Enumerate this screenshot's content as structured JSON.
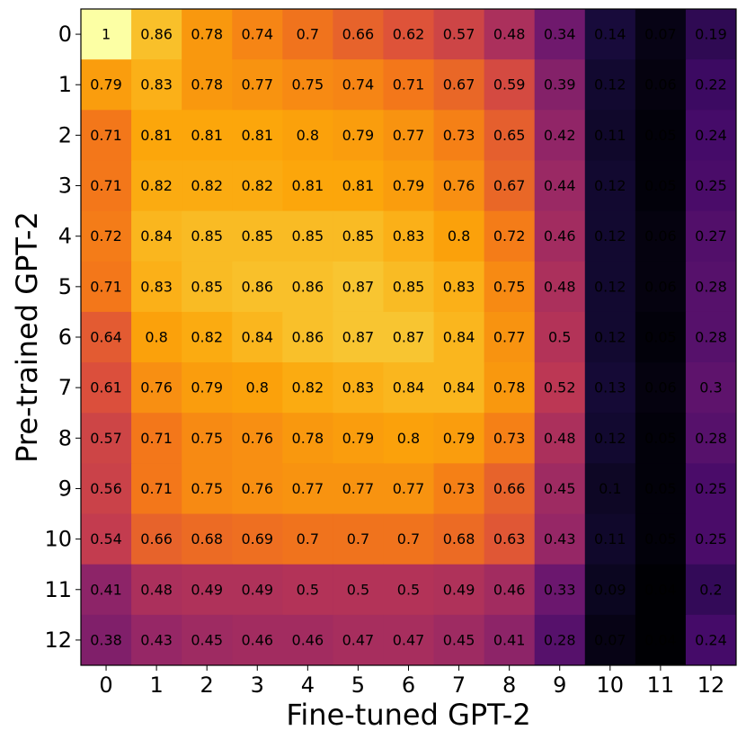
{
  "chart_data": {
    "type": "heatmap",
    "title": "",
    "xlabel": "Fine-tuned GPT-2",
    "ylabel": "Pre-trained GPT-2",
    "x_categories": [
      "0",
      "1",
      "2",
      "3",
      "4",
      "5",
      "6",
      "7",
      "8",
      "9",
      "10",
      "11",
      "12"
    ],
    "y_categories": [
      "0",
      "1",
      "2",
      "3",
      "4",
      "5",
      "6",
      "7",
      "8",
      "9",
      "10",
      "11",
      "12"
    ],
    "colormap": "inferno",
    "vmin": 0.04,
    "vmax": 1.0,
    "values": [
      [
        1.0,
        0.86,
        0.78,
        0.74,
        0.7,
        0.66,
        0.62,
        0.57,
        0.48,
        0.34,
        0.14,
        0.07,
        0.19
      ],
      [
        0.79,
        0.83,
        0.78,
        0.77,
        0.75,
        0.74,
        0.71,
        0.67,
        0.59,
        0.39,
        0.12,
        0.06,
        0.22
      ],
      [
        0.71,
        0.81,
        0.81,
        0.81,
        0.8,
        0.79,
        0.77,
        0.73,
        0.65,
        0.42,
        0.11,
        0.05,
        0.24
      ],
      [
        0.71,
        0.82,
        0.82,
        0.82,
        0.81,
        0.81,
        0.79,
        0.76,
        0.67,
        0.44,
        0.12,
        0.05,
        0.25
      ],
      [
        0.72,
        0.84,
        0.85,
        0.85,
        0.85,
        0.85,
        0.83,
        0.8,
        0.72,
        0.46,
        0.12,
        0.06,
        0.27
      ],
      [
        0.71,
        0.83,
        0.85,
        0.86,
        0.86,
        0.87,
        0.85,
        0.83,
        0.75,
        0.48,
        0.12,
        0.06,
        0.28
      ],
      [
        0.64,
        0.8,
        0.82,
        0.84,
        0.86,
        0.87,
        0.87,
        0.84,
        0.77,
        0.5,
        0.12,
        0.05,
        0.28
      ],
      [
        0.61,
        0.76,
        0.79,
        0.8,
        0.82,
        0.83,
        0.84,
        0.84,
        0.78,
        0.52,
        0.13,
        0.06,
        0.3
      ],
      [
        0.57,
        0.71,
        0.75,
        0.76,
        0.78,
        0.79,
        0.8,
        0.79,
        0.73,
        0.48,
        0.12,
        0.05,
        0.28
      ],
      [
        0.56,
        0.71,
        0.75,
        0.76,
        0.77,
        0.77,
        0.77,
        0.73,
        0.66,
        0.45,
        0.1,
        0.05,
        0.25
      ],
      [
        0.54,
        0.66,
        0.68,
        0.69,
        0.7,
        0.7,
        0.7,
        0.68,
        0.63,
        0.43,
        0.11,
        0.05,
        0.25
      ],
      [
        0.41,
        0.48,
        0.49,
        0.49,
        0.5,
        0.5,
        0.5,
        0.49,
        0.46,
        0.33,
        0.09,
        0.04,
        0.2
      ],
      [
        0.38,
        0.43,
        0.45,
        0.46,
        0.46,
        0.47,
        0.47,
        0.45,
        0.41,
        0.28,
        0.07,
        0.04,
        0.24
      ]
    ]
  }
}
